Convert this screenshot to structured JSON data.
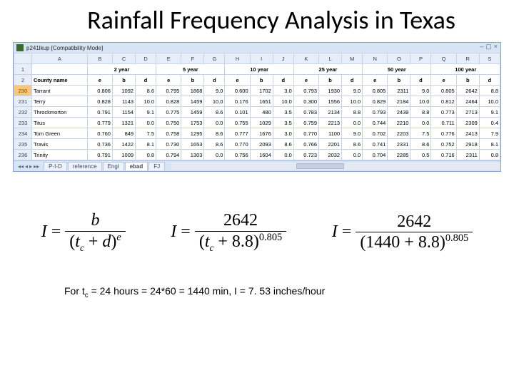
{
  "title": "Rainfall Frequency Analysis in Texas",
  "excel": {
    "doc_title": "p241lkup  [Compatibility Mode]",
    "win_controls": {
      "min": "–",
      "max": "▢",
      "close": "×"
    },
    "cols": [
      "A",
      "B",
      "C",
      "D",
      "E",
      "F",
      "G",
      "H",
      "I",
      "J",
      "K",
      "L",
      "M",
      "N",
      "O",
      "P",
      "Q",
      "R",
      "S"
    ],
    "row1_label": "County name",
    "years": [
      "2 year",
      "5 year",
      "10 year",
      "25 year",
      "50 year",
      "100 year"
    ],
    "subheaders": [
      "e",
      "b",
      "d",
      "e",
      "b",
      "d",
      "e",
      "b",
      "d",
      "e",
      "b",
      "d",
      "e",
      "b",
      "d",
      "e",
      "b",
      "d"
    ],
    "header_row_nums": [
      "1",
      "2"
    ],
    "rows": [
      {
        "n": "230",
        "county": "Tarrant",
        "v": [
          "0.806",
          "1092",
          "8.6",
          "0.795",
          "1868",
          "9.0",
          "0.600",
          "1702",
          "3.0",
          "0.793",
          "1930",
          "9.0",
          "0.805",
          "2311",
          "9.0",
          "0.805",
          "2642",
          "8.8"
        ]
      },
      {
        "n": "231",
        "county": "Terry",
        "v": [
          "0.828",
          "1143",
          "10.0",
          "0.828",
          "1459",
          "10.0",
          "0.176",
          "1651",
          "10.0",
          "0.300",
          "1556",
          "10.0",
          "0.829",
          "2184",
          "10.0",
          "0.812",
          "2464",
          "10.0"
        ]
      },
      {
        "n": "232",
        "county": "Throckmorton",
        "v": [
          "0.791",
          "1154",
          "9.1",
          "0.775",
          "1459",
          "8.6",
          "0.101",
          "480",
          "3.5",
          "0.783",
          "2134",
          "8.8",
          "0.793",
          "2439",
          "8.8",
          "0.773",
          "2713",
          "9.1"
        ]
      },
      {
        "n": "233",
        "county": "Titus",
        "v": [
          "0.779",
          "1321",
          "0.0",
          "0.750",
          "1753",
          "0.0",
          "0.755",
          "1029",
          "3.5",
          "0.759",
          "2213",
          "0.0",
          "0.744",
          "2210",
          "0.0",
          "0.711",
          "2309",
          "0.4"
        ]
      },
      {
        "n": "234",
        "county": "Tom Green",
        "v": [
          "0.760",
          "849",
          "7.5",
          "0.758",
          "1295",
          "8.6",
          "0.777",
          "1676",
          "3.0",
          "0.770",
          "1100",
          "9.0",
          "0.702",
          "2203",
          "7.5",
          "0.776",
          "2413",
          "7.9"
        ]
      },
      {
        "n": "235",
        "county": "Travis",
        "v": [
          "0.736",
          "1422",
          "8.1",
          "0.730",
          "1653",
          "8.6",
          "0.770",
          "2093",
          "8.6",
          "0.766",
          "2201",
          "8.6",
          "0.741",
          "2331",
          "8.6",
          "0.752",
          "2918",
          "8.1"
        ]
      },
      {
        "n": "236",
        "county": "Trinity",
        "v": [
          "0.791",
          "1009",
          "0.8",
          "0.794",
          "1303",
          "0.0",
          "0.756",
          "1604",
          "0.0",
          "0.723",
          "2032",
          "0.0",
          "0.704",
          "2285",
          "0.5",
          "0.716",
          "2311",
          "0.8"
        ]
      }
    ],
    "tabs": {
      "items": [
        "P-I-D",
        "reference",
        "Engl",
        "ebad",
        "FJ"
      ],
      "active_index": 3
    }
  },
  "equations": {
    "eq1": {
      "num": "b",
      "den_pre": "(",
      "den_var": "t",
      "den_sub": "c",
      "den_plus": " + ",
      "den_d": "d",
      "den_post": ")",
      "den_exp": "e"
    },
    "eq2": {
      "num": "2642",
      "den_pre": "(",
      "den_var": "t",
      "den_sub": "c",
      "den_plus": " + 8.8)",
      "den_exp": "0.805"
    },
    "eq3": {
      "num": "2642",
      "den": "(1440 + 8.8)",
      "den_exp": "0.805"
    }
  },
  "caption": {
    "pre": "For t",
    "sub": "c",
    "rest": " = 24 hours = 24*60 = 1440 min, I = 7. 53 inches/hour"
  }
}
